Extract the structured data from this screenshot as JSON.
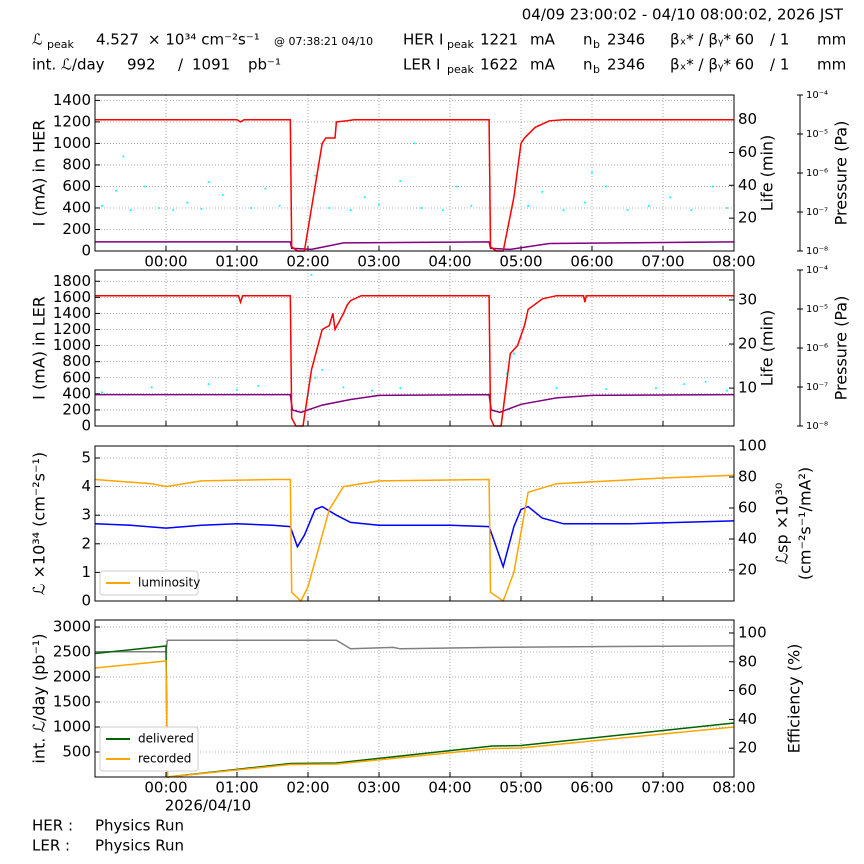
{
  "header": {
    "period": "04/09 23:00:02 - 04/10 08:00:02, 2026 JST",
    "rows": [
      [
        "ℒ",
        "peak",
        "4.527",
        "× 10³⁴ cm⁻²s⁻¹",
        "@ 07:38:21 04/10",
        "HER I",
        "peak",
        "1221",
        "mA",
        "n",
        "b",
        "2346",
        "βₓ* / βᵧ*",
        "60",
        "/ 1",
        "mm"
      ],
      [
        "int. ℒ/day",
        "992",
        "/",
        "1091",
        "pb⁻¹",
        "LER I",
        "peak",
        "1622",
        "mA",
        "n",
        "b",
        "2346",
        "βₓ* / βᵧ*",
        "60",
        "/ 1",
        "mm"
      ]
    ]
  },
  "chart_data": [
    {
      "type": "line",
      "ylabel": "I (mA) in HER",
      "y2label": "Life (min)",
      "y3label": "Pressure (Pa)",
      "grid": true,
      "xlim": [
        -1,
        8
      ],
      "xticks": [
        {
          "value": 0,
          "label": "00:00"
        },
        {
          "value": 1,
          "label": "01:00"
        },
        {
          "value": 2,
          "label": "02:00"
        },
        {
          "value": 3,
          "label": "03:00"
        },
        {
          "value": 4,
          "label": "04:00"
        },
        {
          "value": 5,
          "label": "05:00"
        },
        {
          "value": 6,
          "label": "06:00"
        },
        {
          "value": 7,
          "label": "07:00"
        },
        {
          "value": 8,
          "label": "08:00"
        }
      ],
      "ylim": [
        0,
        1450
      ],
      "yticks": [
        0,
        200,
        400,
        600,
        800,
        1000,
        1200,
        1400
      ],
      "y2lim": [
        0,
        95
      ],
      "y2ticks": [
        20,
        40,
        60,
        80
      ],
      "y3lim": [
        1e-08,
        0.0001
      ],
      "y3log": true,
      "y3ticks": [
        {
          "value": 1e-08,
          "label": "10⁻⁸"
        },
        {
          "value": 1e-07,
          "label": "10⁻⁷"
        },
        {
          "value": 1e-06,
          "label": "10⁻⁶"
        },
        {
          "value": 1e-05,
          "label": "10⁻⁵"
        },
        {
          "value": 0.0001,
          "label": "10⁻⁴"
        }
      ],
      "series": [
        {
          "color": "#00ffff",
          "marker": "dots",
          "x": [
            -0.9,
            -0.7,
            -0.5,
            -0.3,
            -0.1,
            0.1,
            0.3,
            0.5,
            0.8,
            1.2,
            1.4,
            1.6,
            2.1,
            2.3,
            2.6,
            2.8,
            3.0,
            3.3,
            3.6,
            3.9,
            4.1,
            4.3,
            5.1,
            5.3,
            5.6,
            5.9,
            6.2,
            6.5,
            6.8,
            7.1,
            7.4,
            7.7,
            7.9,
            -0.6,
            0.6,
            3.5,
            6.0
          ],
          "values": [
            420,
            560,
            380,
            600,
            400,
            380,
            450,
            390,
            520,
            400,
            580,
            420,
            700,
            400,
            380,
            500,
            430,
            650,
            400,
            380,
            600,
            420,
            420,
            550,
            380,
            450,
            600,
            380,
            420,
            500,
            380,
            600,
            400,
            880,
            640,
            1000,
            730
          ]
        },
        {
          "color": "#800080",
          "x": [
            -1,
            1.75,
            1.77,
            2.05,
            2.5,
            4.55,
            4.57,
            4.85,
            5.4,
            8
          ],
          "values": [
            85,
            85,
            25,
            15,
            75,
            85,
            25,
            15,
            70,
            85
          ]
        },
        {
          "color": "#ff0000",
          "x": [
            -1,
            1.0,
            1.05,
            1.1,
            1.75,
            1.77,
            1.85,
            1.95,
            2.1,
            2.2,
            2.25,
            2.38,
            2.4,
            2.55,
            2.65,
            4.55,
            4.57,
            4.65,
            4.75,
            4.9,
            5.0,
            5.05,
            5.2,
            5.4,
            5.6,
            8
          ],
          "values": [
            1220,
            1220,
            1200,
            1220,
            1220,
            40,
            0,
            0,
            600,
            1000,
            1050,
            1050,
            1200,
            1210,
            1220,
            1220,
            40,
            0,
            0,
            500,
            1000,
            1050,
            1150,
            1210,
            1220,
            1220
          ]
        }
      ]
    },
    {
      "type": "line",
      "ylabel": "I (mA) in LER",
      "y2label": "Life (min)",
      "y3label": "Pressure (Pa)",
      "grid": true,
      "xlim": [
        -1,
        8
      ],
      "xticks": [
        0,
        1,
        2,
        3,
        4,
        5,
        6,
        7,
        8
      ],
      "ylim": [
        0,
        1940
      ],
      "yticks": [
        0,
        200,
        400,
        600,
        800,
        1000,
        1200,
        1400,
        1600,
        1800
      ],
      "y2lim": [
        1.4,
        36.8
      ],
      "y2ticks": [
        10,
        20,
        30
      ],
      "y3lim": [
        1e-08,
        0.0001
      ],
      "y3log": true,
      "y3ticks": [
        {
          "value": 1e-08,
          "label": "10⁻⁸"
        },
        {
          "value": 1e-07,
          "label": "10⁻⁷"
        },
        {
          "value": 1e-06,
          "label": "10⁻⁶"
        },
        {
          "value": 1e-05,
          "label": "10⁻⁵"
        },
        {
          "value": 0.0001,
          "label": "10⁻⁴"
        }
      ],
      "series": [
        {
          "color": "#00ffff",
          "marker": "dots",
          "x": [
            -0.9,
            -0.2,
            0.6,
            1.0,
            2.0,
            2.1,
            2.2,
            2.5,
            2.9,
            3.3,
            4.8,
            4.9,
            5.0,
            5.5,
            6.2,
            6.9,
            7.3,
            7.6,
            7.9,
            1.3,
            2.05
          ],
          "values": [
            420,
            480,
            520,
            450,
            380,
            600,
            700,
            480,
            440,
            470,
            650,
            900,
            1100,
            470,
            460,
            470,
            520,
            550,
            440,
            500,
            1880
          ]
        },
        {
          "color": "#800080",
          "x": [
            -1,
            1.75,
            1.78,
            1.9,
            2.2,
            2.6,
            3.0,
            4.55,
            4.58,
            4.7,
            5.0,
            5.5,
            6.0,
            8
          ],
          "values": [
            390,
            390,
            200,
            170,
            260,
            330,
            380,
            390,
            200,
            170,
            270,
            350,
            380,
            390
          ]
        },
        {
          "color": "#ff0000",
          "x": [
            -1,
            1.02,
            1.05,
            1.08,
            1.75,
            1.77,
            1.83,
            1.93,
            2.05,
            2.2,
            2.3,
            2.35,
            2.38,
            2.5,
            2.55,
            2.6,
            2.75,
            4.55,
            4.57,
            4.62,
            4.72,
            4.85,
            4.95,
            5.05,
            5.1,
            5.3,
            5.5,
            5.88,
            5.9,
            5.92,
            8
          ],
          "values": [
            1620,
            1620,
            1540,
            1620,
            1620,
            100,
            0,
            0,
            700,
            1200,
            1250,
            1400,
            1200,
            1400,
            1500,
            1560,
            1620,
            1620,
            100,
            0,
            0,
            900,
            1000,
            1250,
            1450,
            1580,
            1620,
            1620,
            1540,
            1620,
            1620
          ]
        }
      ]
    },
    {
      "type": "line",
      "ylabel": "ℒ ×10³⁴ (cm⁻²s⁻¹)",
      "y2label": "ℒsp ×10³⁰",
      "y2label2": "(cm⁻²s⁻¹/mA²)",
      "grid": true,
      "legend": "lower left",
      "xlim": [
        -1,
        8
      ],
      "xticks": [
        0,
        1,
        2,
        3,
        4,
        5,
        6,
        7,
        8
      ],
      "ylim": [
        0,
        5.42
      ],
      "yticks": [
        0,
        1,
        2,
        3,
        4,
        5
      ],
      "y2lim": [
        0,
        100
      ],
      "y2ticks": [
        20,
        40,
        60,
        80,
        100
      ],
      "series": [
        {
          "color": "#0000ff",
          "x": [
            -1,
            -0.5,
            0,
            0.5,
            1.0,
            1.5,
            1.75,
            1.85,
            1.95,
            2.1,
            2.2,
            2.4,
            2.6,
            3.0,
            4.0,
            4.55,
            4.75,
            4.9,
            5.0,
            5.1,
            5.3,
            5.6,
            6.5,
            8
          ],
          "values": [
            2.7,
            2.65,
            2.55,
            2.65,
            2.7,
            2.65,
            2.6,
            1.9,
            2.3,
            3.2,
            3.3,
            3.0,
            2.75,
            2.65,
            2.65,
            2.6,
            1.2,
            2.6,
            3.2,
            3.3,
            2.9,
            2.7,
            2.7,
            2.8
          ]
        },
        {
          "name": "luminosity",
          "color": "#ffa500",
          "x": [
            -1,
            -0.2,
            0,
            0.5,
            1.5,
            1.75,
            1.77,
            1.9,
            2.0,
            2.3,
            2.5,
            3.0,
            4.55,
            4.57,
            4.75,
            4.9,
            5.1,
            5.5,
            7.0,
            8
          ],
          "values": [
            4.25,
            4.1,
            4.0,
            4.2,
            4.25,
            4.25,
            0.3,
            0,
            0.5,
            3.2,
            4.0,
            4.2,
            4.25,
            0.3,
            0,
            1.0,
            3.8,
            4.1,
            4.3,
            4.4
          ]
        }
      ]
    },
    {
      "type": "line",
      "ylabel": "int. ℒ/day (pb⁻¹)",
      "y2label": "Efficiency (%)",
      "grid": true,
      "legend": "lower left",
      "annotation": "2026/04/10",
      "xlim": [
        -1,
        8
      ],
      "xticks": [
        {
          "value": 0,
          "label": "00:00"
        },
        {
          "value": 1,
          "label": "01:00"
        },
        {
          "value": 2,
          "label": "02:00"
        },
        {
          "value": 3,
          "label": "03:00"
        },
        {
          "value": 4,
          "label": "04:00"
        },
        {
          "value": 5,
          "label": "05:00"
        },
        {
          "value": 6,
          "label": "06:00"
        },
        {
          "value": 7,
          "label": "07:00"
        },
        {
          "value": 8,
          "label": "08:00"
        }
      ],
      "ylim": [
        0,
        3140
      ],
      "yticks": [
        500,
        1000,
        1500,
        2000,
        2500,
        3000
      ],
      "y2lim": [
        0,
        109
      ],
      "y2ticks": [
        20,
        40,
        60,
        80,
        100
      ],
      "series": [
        {
          "color": "#808080",
          "axis": "y2",
          "x": [
            -1,
            0,
            0.02,
            2.4,
            2.6,
            3.2,
            3.3,
            4.6,
            6.0,
            8
          ],
          "values": [
            87,
            87,
            95,
            95,
            89,
            90,
            89,
            90,
            90.5,
            91
          ]
        },
        {
          "name": "delivered",
          "color": "#006400",
          "x": [
            -1,
            0,
            0.02,
            1.75,
            2.4,
            4.6,
            5.0,
            8
          ],
          "values": [
            2470,
            2620,
            0,
            270,
            280,
            620,
            630,
            1080
          ]
        },
        {
          "name": "recorded",
          "color": "#ffa500",
          "x": [
            -1,
            0,
            0.02,
            1.75,
            2.4,
            4.6,
            5.0,
            8
          ],
          "values": [
            2180,
            2320,
            0,
            250,
            260,
            570,
            580,
            1000
          ]
        }
      ]
    }
  ],
  "footer": [
    [
      "HER :",
      "Physics Run"
    ],
    [
      "LER :",
      "Physics Run"
    ]
  ]
}
